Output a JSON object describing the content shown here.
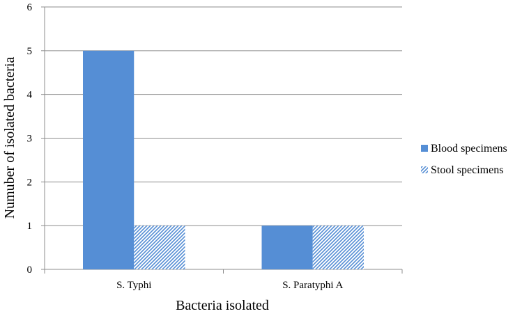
{
  "chart_data": {
    "type": "bar",
    "categories": [
      "S. Typhi",
      "S. Paratyphi A"
    ],
    "series": [
      {
        "name": "Blood specimens",
        "values": [
          5,
          1
        ],
        "color": "#558ed5",
        "pattern": "solid"
      },
      {
        "name": "Stool specimens",
        "values": [
          1,
          1
        ],
        "color": "#558ed5",
        "pattern": "diagonal-hatch"
      }
    ],
    "xlabel": "Bacteria isolated",
    "ylabel": "Numuber of isolated bacteria",
    "ylim": [
      0,
      6
    ],
    "yticks": [
      "0",
      "1",
      "2",
      "3",
      "4",
      "5",
      "6"
    ],
    "grid": true,
    "legend_position": "right"
  }
}
